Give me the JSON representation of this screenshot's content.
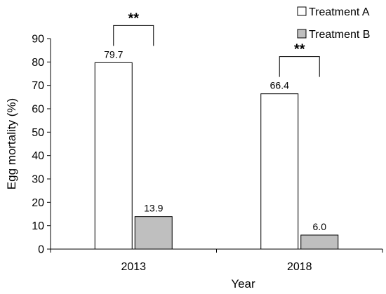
{
  "chart_data": {
    "type": "bar",
    "categories": [
      "2013",
      "2018"
    ],
    "series": [
      {
        "name": "Treatment A",
        "values": [
          79.7,
          66.4
        ],
        "labels": [
          "79.7",
          "66.4"
        ],
        "color": "#ffffff"
      },
      {
        "name": "Treatment B",
        "values": [
          13.9,
          6.0
        ],
        "labels": [
          "13.9",
          "6.0"
        ],
        "color": "#bfbfbf"
      }
    ],
    "xlabel": "Year",
    "ylabel": "Egg mortality (%)",
    "ylim": [
      0,
      90
    ],
    "yticks": [
      "0",
      "10",
      "20",
      "30",
      "40",
      "50",
      "60",
      "70",
      "80",
      "90"
    ],
    "grid": false,
    "legend_position": "top-right",
    "annotations": [
      {
        "category": "2013",
        "text": "**"
      },
      {
        "category": "2018",
        "text": "**"
      }
    ]
  }
}
